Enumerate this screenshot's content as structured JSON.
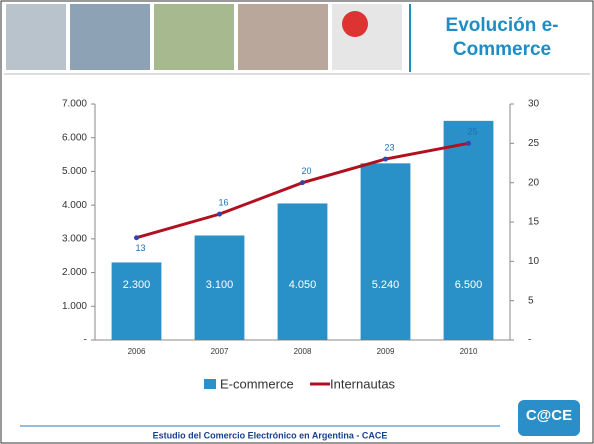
{
  "header": {
    "title": "Evolución e-Commerce"
  },
  "chart_data": {
    "type": "bar",
    "categories": [
      "2006",
      "2007",
      "2008",
      "2009",
      "2010"
    ],
    "series": [
      {
        "name": "E-commerce",
        "color": "#2990c8",
        "values": [
          2300,
          3100,
          4050,
          5240,
          6500
        ],
        "value_labels": [
          "2.300",
          "3.100",
          "4.050",
          "5.240",
          "6.500"
        ]
      },
      {
        "name": "Internautas",
        "type": "line",
        "axis": "y2",
        "color": "#b01020",
        "values": [
          13,
          16,
          20,
          23,
          25
        ]
      }
    ],
    "ylim": [
      0,
      7000
    ],
    "yticks": [
      {
        "value": 0,
        "label": "-"
      },
      {
        "value": 1000,
        "label": "1.000"
      },
      {
        "value": 2000,
        "label": "2.000"
      },
      {
        "value": 3000,
        "label": "3.000"
      },
      {
        "value": 4000,
        "label": "4.000"
      },
      {
        "value": 5000,
        "label": "5.000"
      },
      {
        "value": 6000,
        "label": "6.000"
      },
      {
        "value": 7000,
        "label": "7.000"
      }
    ],
    "y2lim": [
      0,
      30
    ],
    "y2ticks": [
      {
        "value": 0,
        "label": "-"
      },
      5,
      10,
      15,
      20,
      25,
      30
    ],
    "legend": "bottom"
  },
  "footer": {
    "text": "Estudio del Comercio Electrónico en Argentina - CACE",
    "logo": "C@CE"
  }
}
